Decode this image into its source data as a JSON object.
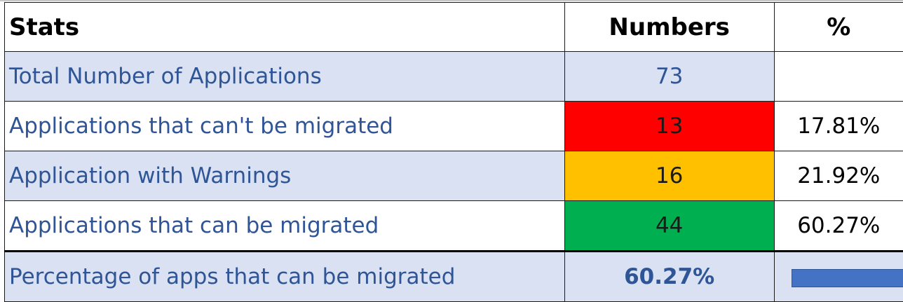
{
  "table": {
    "headers": {
      "stats": "Stats",
      "numbers": "Numbers",
      "percent": "%"
    },
    "rows": [
      {
        "label": "Total Number of Applications",
        "number": "73",
        "percent": ""
      },
      {
        "label": "Applications that can't be migrated",
        "number": "13",
        "percent": "17.81%",
        "status_color": "#ff0000"
      },
      {
        "label": "Application with Warnings",
        "number": "16",
        "percent": "21.92%",
        "status_color": "#ffc000"
      },
      {
        "label": "Applications that can be migrated",
        "number": "44",
        "percent": "60.27%",
        "status_color": "#00b050"
      }
    ],
    "summary": {
      "label": "Percentage of apps that can be migrated",
      "value": "60.27%",
      "bar_fraction": 0.6027,
      "bar_color": "#4472c4"
    }
  },
  "colors": {
    "row_shade": "#d9e1f2",
    "label_text": "#2f5597"
  }
}
